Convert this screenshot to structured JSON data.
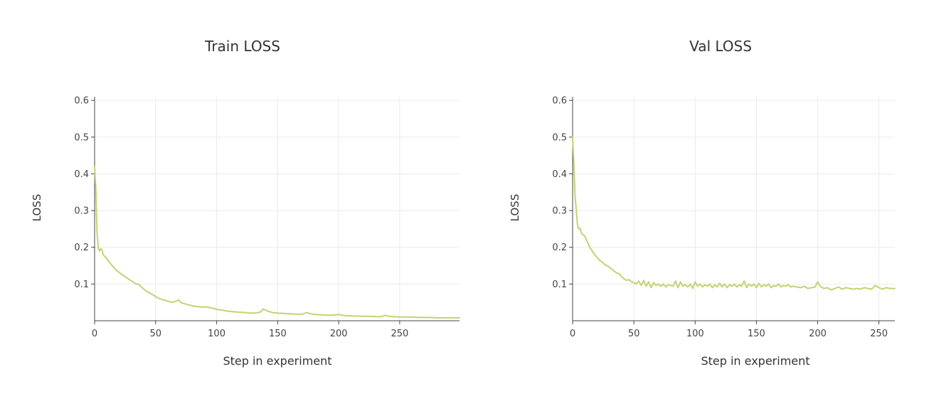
{
  "chart_data": [
    {
      "type": "line",
      "title": "Train LOSS",
      "xlabel": "Step in experiment",
      "ylabel": "LOSS",
      "xlim": [
        0,
        299
      ],
      "ylim": [
        0.0,
        0.61
      ],
      "xticks": [
        0,
        50,
        100,
        150,
        200,
        250
      ],
      "yticks": [
        0.1,
        0.2,
        0.3,
        0.4,
        0.5,
        0.6
      ],
      "grid": true,
      "line_color": "#c2d372",
      "series": [
        {
          "x": [
            0,
            1,
            2,
            3,
            4,
            5,
            6,
            7,
            8,
            9,
            10,
            12,
            14,
            16,
            18,
            20,
            22,
            25,
            28,
            31,
            34,
            36,
            38,
            40,
            43,
            46,
            49,
            50,
            52,
            55,
            58,
            61,
            64,
            67,
            69,
            71,
            74,
            77,
            80,
            83,
            86,
            89,
            91,
            94,
            97,
            100,
            104,
            108,
            112,
            116,
            120,
            124,
            128,
            132,
            136,
            138,
            140,
            143,
            146,
            150,
            155,
            160,
            165,
            170,
            174,
            178,
            182,
            186,
            190,
            195,
            200,
            205,
            210,
            215,
            220,
            225,
            230,
            235,
            238,
            241,
            245,
            250,
            255,
            260,
            265,
            270,
            275,
            280,
            285,
            290,
            295,
            299
          ],
          "y": [
            0.42,
            0.36,
            0.24,
            0.198,
            0.19,
            0.196,
            0.193,
            0.18,
            0.176,
            0.174,
            0.168,
            0.16,
            0.152,
            0.144,
            0.137,
            0.132,
            0.127,
            0.12,
            0.113,
            0.107,
            0.1,
            0.1,
            0.093,
            0.087,
            0.079,
            0.074,
            0.068,
            0.066,
            0.062,
            0.058,
            0.055,
            0.052,
            0.05,
            0.054,
            0.056,
            0.049,
            0.046,
            0.043,
            0.041,
            0.039,
            0.038,
            0.037,
            0.038,
            0.036,
            0.034,
            0.031,
            0.029,
            0.027,
            0.025,
            0.024,
            0.023,
            0.022,
            0.021,
            0.021,
            0.024,
            0.032,
            0.029,
            0.025,
            0.022,
            0.021,
            0.02,
            0.019,
            0.018,
            0.018,
            0.022,
            0.018,
            0.017,
            0.016,
            0.015,
            0.015,
            0.017,
            0.014,
            0.013,
            0.013,
            0.012,
            0.012,
            0.011,
            0.011,
            0.015,
            0.012,
            0.011,
            0.01,
            0.01,
            0.01,
            0.009,
            0.009,
            0.009,
            0.008,
            0.008,
            0.008,
            0.008,
            0.008
          ]
        }
      ]
    },
    {
      "type": "line",
      "title": "Val LOSS",
      "xlabel": "Step in experiment",
      "ylabel": "LOSS",
      "xlim": [
        0,
        263
      ],
      "ylim": [
        0.0,
        0.61
      ],
      "xticks": [
        0,
        50,
        100,
        150,
        200,
        250
      ],
      "yticks": [
        0.1,
        0.2,
        0.3,
        0.4,
        0.5,
        0.6
      ],
      "grid": true,
      "line_color": "#c2d372",
      "series": [
        {
          "x": [
            0,
            1,
            2,
            3,
            4,
            5,
            6,
            7,
            8,
            10,
            12,
            14,
            16,
            18,
            20,
            22,
            24,
            26,
            28,
            30,
            32,
            34,
            36,
            38,
            40,
            42,
            44,
            46,
            48,
            50,
            52,
            54,
            56,
            58,
            60,
            62,
            64,
            66,
            68,
            70,
            72,
            74,
            76,
            78,
            80,
            82,
            84,
            86,
            88,
            90,
            92,
            94,
            96,
            98,
            100,
            102,
            104,
            106,
            108,
            110,
            112,
            114,
            116,
            118,
            120,
            122,
            124,
            126,
            128,
            130,
            132,
            134,
            136,
            138,
            140,
            142,
            144,
            146,
            148,
            150,
            152,
            154,
            156,
            158,
            160,
            162,
            164,
            166,
            168,
            170,
            172,
            174,
            176,
            178,
            180,
            183,
            186,
            189,
            192,
            195,
            198,
            200,
            202,
            205,
            208,
            211,
            214,
            217,
            220,
            223,
            226,
            229,
            232,
            235,
            238,
            241,
            244,
            247,
            250,
            253,
            256,
            259,
            263
          ],
          "y": [
            0.5,
            0.43,
            0.34,
            0.3,
            0.26,
            0.25,
            0.252,
            0.24,
            0.235,
            0.23,
            0.215,
            0.2,
            0.19,
            0.18,
            0.172,
            0.165,
            0.16,
            0.154,
            0.15,
            0.146,
            0.14,
            0.135,
            0.13,
            0.128,
            0.12,
            0.114,
            0.11,
            0.112,
            0.106,
            0.104,
            0.1,
            0.108,
            0.096,
            0.11,
            0.094,
            0.106,
            0.09,
            0.104,
            0.096,
            0.1,
            0.094,
            0.1,
            0.092,
            0.098,
            0.096,
            0.094,
            0.108,
            0.09,
            0.106,
            0.094,
            0.098,
            0.092,
            0.1,
            0.088,
            0.106,
            0.094,
            0.1,
            0.092,
            0.098,
            0.094,
            0.1,
            0.09,
            0.098,
            0.092,
            0.102,
            0.092,
            0.1,
            0.09,
            0.098,
            0.094,
            0.1,
            0.092,
            0.098,
            0.094,
            0.108,
            0.09,
            0.1,
            0.094,
            0.1,
            0.09,
            0.102,
            0.092,
            0.098,
            0.094,
            0.1,
            0.09,
            0.096,
            0.094,
            0.1,
            0.092,
            0.096,
            0.094,
            0.098,
            0.092,
            0.094,
            0.092,
            0.09,
            0.094,
            0.088,
            0.09,
            0.092,
            0.106,
            0.094,
            0.088,
            0.09,
            0.084,
            0.088,
            0.092,
            0.086,
            0.09,
            0.088,
            0.086,
            0.088,
            0.086,
            0.09,
            0.088,
            0.086,
            0.096,
            0.09,
            0.086,
            0.09,
            0.088,
            0.088
          ]
        }
      ]
    }
  ]
}
